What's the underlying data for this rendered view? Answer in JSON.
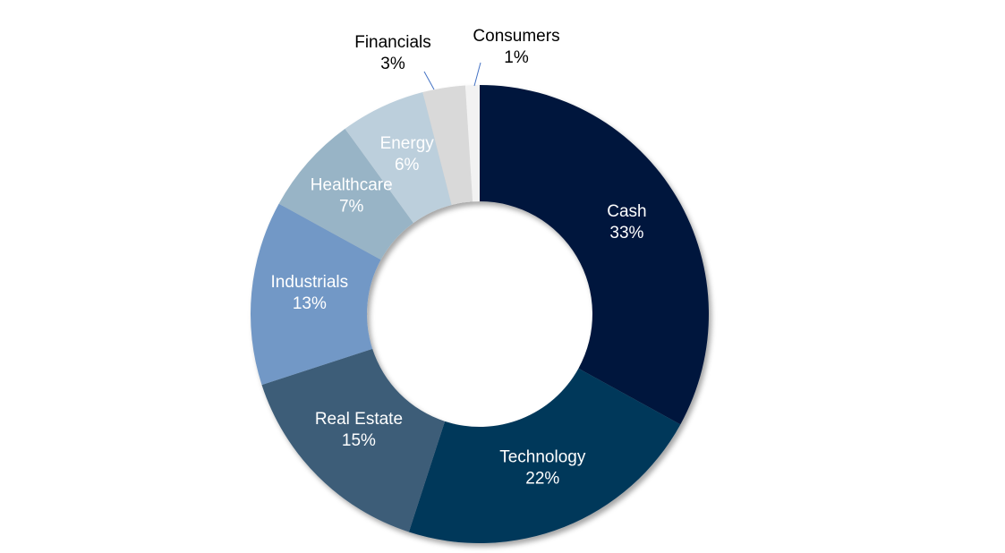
{
  "chart_data": {
    "type": "pie",
    "style": "donut",
    "categories": [
      "Cash",
      "Technology",
      "Real Estate",
      "Industrials",
      "Healthcare",
      "Energy",
      "Financials",
      "Consumers"
    ],
    "values": [
      33,
      22,
      15,
      13,
      7,
      6,
      3,
      1
    ],
    "value_labels": [
      "33%",
      "22%",
      "15%",
      "13%",
      "7%",
      "6%",
      "3%",
      "1%"
    ],
    "colors": [
      "#06193C",
      "#05375A",
      "#3D5D78",
      "#7298C6",
      "#98B4C6",
      "#BCCFDC",
      "#D9D9D9",
      "#F2F2F2"
    ],
    "label_colors": [
      "#FFFFFF",
      "#FFFFFF",
      "#FFFFFF",
      "#FFFFFF",
      "#FFFFFF",
      "#FFFFFF",
      "#000000",
      "#000000"
    ],
    "outside_labels": [
      "Financials",
      "Consumers"
    ],
    "leader_line_color": "#4472C4",
    "legend": "none"
  }
}
